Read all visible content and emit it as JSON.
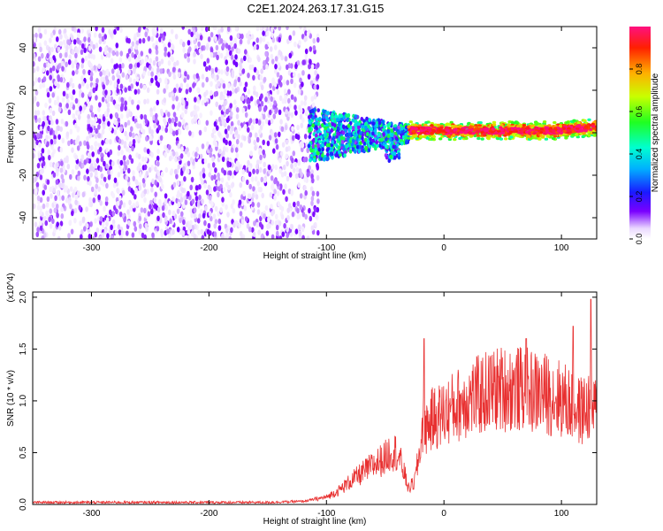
{
  "title": "C2E1.2024.263.17.31.G15",
  "colors": {
    "snr_line": "#e83030",
    "frame": "#000000"
  },
  "chart_data": [
    {
      "type": "heatmap",
      "xlabel": "Height of straight line (km)",
      "ylabel": "Frequency (Hz)",
      "xlim": [
        -350,
        130
      ],
      "ylim": [
        -50,
        50
      ],
      "xticks": [
        -300,
        -200,
        -100,
        0,
        100
      ],
      "yticks": [
        -40,
        -20,
        0,
        20,
        40
      ],
      "colorbar": {
        "label": "Normalized spectral amplitude",
        "range": [
          0,
          1
        ],
        "ticks": [
          "0.0",
          "0.2",
          "0.4",
          "0.6",
          "0.8"
        ],
        "colormap": "rainbow-white-low"
      },
      "regions": [
        {
          "x_range": [
            -350,
            -115
          ],
          "y_range": [
            -50,
            50
          ],
          "amplitude_range": [
            0.0,
            0.12
          ],
          "description": "diffuse noise"
        },
        {
          "x_range": [
            -115,
            -30
          ],
          "y_range": [
            -18,
            12
          ],
          "amplitude_range": [
            0.1,
            0.55
          ],
          "description": "onset of signal"
        },
        {
          "x_range": [
            -30,
            130
          ],
          "y_center": 1,
          "y_halfwidth": 3,
          "amplitude_range": [
            0.45,
            1.0
          ],
          "description": "carrier line"
        }
      ]
    },
    {
      "type": "line",
      "xlabel": "Height of straight line (km)",
      "ylabel": "SNR (10 * v/v)",
      "y_multiplier": "(x10^4)",
      "xlim": [
        -350,
        130
      ],
      "ylim": [
        0,
        2.05
      ],
      "xticks": [
        -300,
        -200,
        -100,
        0,
        100
      ],
      "yticks": [
        "0.0",
        "0.5",
        "1.0",
        "1.5",
        "2.0"
      ],
      "series": [
        {
          "x": [
            -350,
            -300,
            -250,
            -200,
            -150,
            -120,
            -100,
            -90,
            -80,
            -70,
            -60,
            -50,
            -45,
            -40,
            -35,
            -30,
            -25,
            -20,
            -17,
            -15,
            -10,
            -5,
            0,
            10,
            20,
            30,
            40,
            50,
            60,
            70,
            80,
            90,
            100,
            110,
            115,
            120,
            125,
            130
          ],
          "y": [
            0.02,
            0.02,
            0.02,
            0.02,
            0.02,
            0.03,
            0.07,
            0.13,
            0.22,
            0.3,
            0.38,
            0.45,
            0.52,
            0.5,
            0.35,
            0.15,
            0.22,
            0.55,
            0.9,
            0.75,
            0.82,
            0.85,
            0.88,
            0.95,
            1.02,
            1.05,
            1.1,
            1.12,
            1.12,
            1.1,
            1.08,
            1.06,
            1.02,
            0.95,
            0.9,
            0.92,
            0.95,
            0.9
          ],
          "peaks": [
            [
              -17,
              1.6
            ],
            [
              125,
              1.98
            ],
            [
              110,
              1.72
            ],
            [
              70,
              1.6
            ]
          ]
        }
      ]
    }
  ]
}
